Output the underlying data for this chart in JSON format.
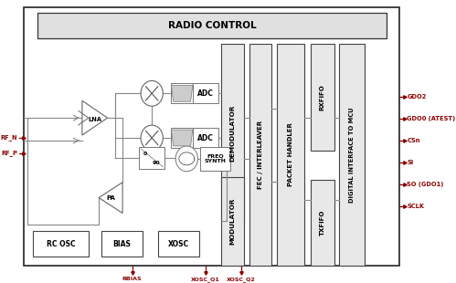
{
  "fig_width": 4.99,
  "fig_height": 3.1,
  "bg_color": "#ffffff",
  "title_label": "RADIO CONTROL",
  "pins_right": [
    {
      "label": "SCLK",
      "yf": 0.735
    },
    {
      "label": "SO (GDO1)",
      "yf": 0.655
    },
    {
      "label": "SI",
      "yf": 0.578
    },
    {
      "label": "CSn",
      "yf": 0.5
    },
    {
      "label": "GDO0 (ATEST)",
      "yf": 0.422
    },
    {
      "label": "GDO2",
      "yf": 0.345
    }
  ],
  "pins_bottom": [
    {
      "label": "RBIAS",
      "xf": 0.295
    },
    {
      "label": "XOSC_Q1",
      "xf": 0.48
    },
    {
      "label": "XOSC_Q2",
      "xf": 0.57
    }
  ],
  "pins_left": [
    {
      "label": "RF_P",
      "yf": 0.545
    },
    {
      "label": "RF_N",
      "yf": 0.49
    }
  ]
}
